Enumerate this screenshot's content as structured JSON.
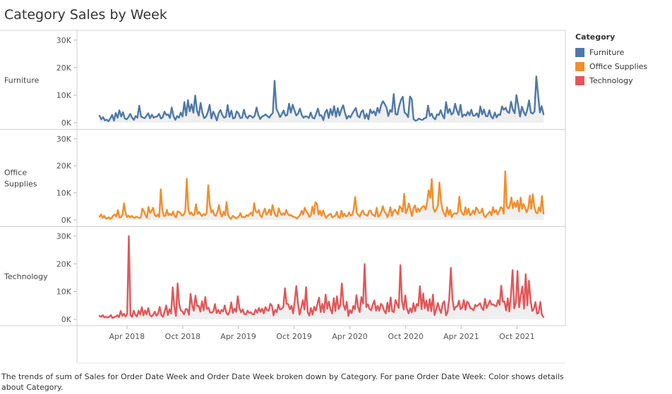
{
  "title": "Category Sales by Week",
  "caption": "The trends of sum of Sales for Order Date Week and Order Date Week broken down by Category.  For pane Order Date Week:  Color shows details about Category.",
  "legend": {
    "title": "Category",
    "items": [
      {
        "label": "Furniture",
        "color": "#4e79a7"
      },
      {
        "label": "Office Supplies",
        "color": "#f28e2b"
      },
      {
        "label": "Technology",
        "color": "#e15759"
      }
    ]
  },
  "chart_data": {
    "type": "line",
    "x_start": "2018-01-01",
    "x_end": "2021-12-27",
    "x_ticks": [
      {
        "label": "Apr 2018",
        "date": "2018-04-01"
      },
      {
        "label": "Oct 2018",
        "date": "2018-10-01"
      },
      {
        "label": "Apr 2019",
        "date": "2019-04-01"
      },
      {
        "label": "Oct 2019",
        "date": "2019-10-01"
      },
      {
        "label": "Apr 2020",
        "date": "2020-04-01"
      },
      {
        "label": "Oct 2020",
        "date": "2020-10-01"
      },
      {
        "label": "Apr 2021",
        "date": "2021-04-01"
      },
      {
        "label": "Oct 2021",
        "date": "2021-10-01"
      }
    ],
    "y_ticks": [
      {
        "label": "0K",
        "value": 0
      },
      {
        "label": "10K",
        "value": 10000
      },
      {
        "label": "20K",
        "value": 20000
      },
      {
        "label": "30K",
        "value": 30000
      }
    ],
    "ylim": [
      0,
      31000
    ],
    "grid": false,
    "panes": [
      {
        "label": "Furniture",
        "color": "#4e79a7",
        "values": [
          2500,
          1200,
          2000,
          800,
          1100,
          500,
          1500,
          2800,
          700,
          3500,
          1800,
          4500,
          2200,
          3800,
          1500,
          1200,
          2000,
          3200,
          1800,
          1000,
          2400,
          1800,
          6200,
          2200,
          1900,
          1600,
          2500,
          3400,
          1600,
          2900,
          1800,
          2100,
          2300,
          3200,
          1500,
          1900,
          4000,
          2800,
          3000,
          1700,
          5500,
          2400,
          1000,
          2400,
          1800,
          3700,
          2200,
          7500,
          2600,
          8200,
          4100,
          6700,
          3600,
          9900,
          4400,
          2500,
          7200,
          3600,
          1600,
          2200,
          3800,
          6500,
          1500,
          4000,
          2600,
          800,
          3400,
          4600,
          2800,
          1800,
          2100,
          6400,
          2100,
          4400,
          1500,
          1800,
          4100,
          3400,
          1700,
          1800,
          4700,
          2300,
          1600,
          2600,
          2300,
          1800,
          2600,
          5500,
          2800,
          1300,
          2200,
          2500,
          3000,
          2400,
          1800,
          2800,
          3500,
          15200,
          5000,
          3700,
          2000,
          3000,
          4400,
          2500,
          2800,
          6900,
          3600,
          6500,
          4500,
          2600,
          3300,
          5100,
          2800,
          1800,
          2300,
          2200,
          1700,
          3700,
          1800,
          1500,
          3200,
          5100,
          2500,
          2700,
          900,
          3700,
          4700,
          1700,
          5000,
          2700,
          6000,
          2100,
          5300,
          2600,
          4800,
          6300,
          3600,
          1400,
          2500,
          1900,
          3300,
          4300,
          5300,
          2500,
          1900,
          3900,
          4500,
          1500,
          3200,
          1200,
          4800,
          3400,
          4200,
          2600,
          5400,
          3600,
          6300,
          7800,
          6800,
          5500,
          2400,
          4600,
          3900,
          10400,
          3100,
          2900,
          6000,
          8200,
          9400,
          3700,
          3100,
          2000,
          9500,
          8600,
          1300,
          700,
          900,
          1500,
          1100,
          1000,
          1600,
          1800,
          6200,
          2400,
          3300,
          1800,
          1200,
          3000,
          2800,
          4500,
          2700,
          1500,
          7500,
          3500,
          5000,
          2900,
          3600,
          6900,
          4400,
          2800,
          6500,
          2100,
          3000,
          2500,
          3900,
          2700,
          4700,
          2500,
          2600,
          3400,
          2000,
          5900,
          3000,
          4800,
          2400,
          2300,
          4500,
          2200,
          1500,
          3700,
          1900,
          3000,
          2800,
          5900,
          4700,
          5400,
          3900,
          3500,
          7600,
          4700,
          3400,
          10000,
          6200,
          2200,
          5800,
          3900,
          2600,
          4700,
          8100,
          3600,
          3300,
          4100,
          16800,
          10200,
          3700,
          6000,
          3000
        ]
      },
      {
        "label": "Office Supplies",
        "color": "#f28e2b",
        "values": [
          1200,
          2000,
          800,
          1500,
          600,
          500,
          1000,
          400,
          800,
          1700,
          2000,
          1200,
          3600,
          900,
          1000,
          2000,
          6100,
          2500,
          1100,
          1600,
          900,
          1500,
          1000,
          700,
          1200,
          900,
          700,
          1000,
          4200,
          3200,
          1700,
          800,
          4800,
          2600,
          3400,
          4500,
          1800,
          1300,
          2000,
          1100,
          11300,
          3800,
          1400,
          1500,
          3700,
          1800,
          2300,
          1700,
          3100,
          1500,
          900,
          3200,
          2900,
          2400,
          1600,
          1900,
          3400,
          15200,
          3900,
          2100,
          2800,
          1700,
          2100,
          5800,
          2200,
          3000,
          2000,
          1400,
          2200,
          1700,
          2700,
          12800,
          5800,
          2800,
          3600,
          1800,
          1500,
          3000,
          5500,
          2300,
          1200,
          3000,
          1800,
          6600,
          1800,
          800,
          400,
          1500,
          1100,
          600,
          800,
          1300,
          2500,
          1000,
          1200,
          900,
          1800,
          1400,
          2200,
          2700,
          1600,
          6200,
          3200,
          2700,
          3700,
          1600,
          1000,
          2900,
          4200,
          1900,
          2700,
          3900,
          1800,
          5500,
          3200,
          1600,
          1300,
          4300,
          2700,
          1800,
          2500,
          1900,
          3700,
          2200,
          1600,
          1900,
          1300,
          1100,
          900,
          500,
          1200,
          1800,
          3400,
          2000,
          4500,
          3300,
          2500,
          1100,
          1700,
          4900,
          2200,
          6500,
          6000,
          2000,
          3400,
          1500,
          3500,
          2000,
          700,
          1500,
          2000,
          2300,
          900,
          1300,
          1500,
          3000,
          1000,
          800,
          3400,
          1200,
          2300,
          1300,
          1500,
          2800,
          1600,
          1900,
          3900,
          8500,
          2500,
          1900,
          1200,
          2700,
          3500,
          2100,
          1800,
          1500,
          3200,
          3500,
          2000,
          1800,
          1300,
          4500,
          1200,
          1800,
          3000,
          5100,
          3100,
          2500,
          1000,
          2400,
          4700,
          1400,
          3200,
          3800,
          2800,
          2000,
          5100,
          4400,
          3000,
          9700,
          2500,
          3600,
          6100,
          3900,
          1400,
          4100,
          5400,
          2900,
          4300,
          3100,
          4200,
          4900,
          5100,
          3800,
          6800,
          11000,
          8200,
          15100,
          4400,
          3000,
          3900,
          5300,
          13800,
          7000,
          3800,
          2400,
          1300,
          4700,
          1900,
          3700,
          1000,
          2000,
          2500,
          2200,
          2800,
          8600,
          3600,
          2300,
          1800,
          4700,
          2200,
          4100,
          1700,
          2300,
          3500,
          2100,
          4600,
          3700,
          2500,
          2800,
          4200,
          1700,
          1000,
          1800,
          2500,
          3100,
          1700,
          4700,
          2800,
          3600,
          2000,
          3100,
          4700,
          4300,
          2300,
          18000,
          5000,
          4200,
          5200,
          8300,
          4300,
          6500,
          4800,
          7200,
          3100,
          8200,
          4100,
          5900,
          4400,
          2800,
          4400,
          9000,
          4100,
          9400,
          4800,
          2800,
          2400,
          4700,
          3100,
          8800,
          2300
        ]
      },
      {
        "label": "Technology",
        "color": "#e15759",
        "values": [
          1200,
          900,
          1500,
          700,
          1000,
          600,
          900,
          1500,
          500,
          800,
          1000,
          1500,
          800,
          3000,
          1200,
          2000,
          1000,
          1900,
          30000,
          1500,
          900,
          3100,
          1600,
          1000,
          3100,
          1700,
          4400,
          1400,
          3200,
          1800,
          4100,
          1500,
          1000,
          1600,
          2800,
          1300,
          2000,
          4500,
          1500,
          900,
          2800,
          5000,
          1500,
          3600,
          2100,
          11500,
          4500,
          1200,
          12900,
          5400,
          3200,
          2800,
          1800,
          3700,
          3600,
          1600,
          9200,
          5000,
          3100,
          8500,
          4800,
          4900,
          2800,
          6500,
          3200,
          8000,
          3700,
          4200,
          2400,
          2400,
          2900,
          5500,
          2200,
          3400,
          2100,
          3400,
          2800,
          5000,
          2300,
          1600,
          2800,
          6100,
          2300,
          3900,
          2700,
          8300,
          4200,
          2500,
          3600,
          1900,
          1700,
          3100,
          2300,
          2600,
          1800,
          1800,
          3500,
          2300,
          4100,
          2700,
          3800,
          2100,
          4400,
          3300,
          3100,
          5600,
          4900,
          1400,
          3400,
          2600,
          5300,
          3500,
          3800,
          4400,
          11200,
          5600,
          5500,
          3600,
          4900,
          2100,
          6500,
          12000,
          5800,
          1700,
          4200,
          6900,
          3500,
          11600,
          2600,
          1300,
          4100,
          1700,
          4500,
          3100,
          5600,
          7800,
          2600,
          5600,
          2500,
          8900,
          3800,
          6400,
          3500,
          2100,
          7600,
          3000,
          8300,
          3700,
          5100,
          12900,
          5300,
          3400,
          6300,
          1200,
          3400,
          2200,
          4800,
          3600,
          8700,
          4400,
          2600,
          8000,
          5700,
          19900,
          4400,
          5400,
          3700,
          3200,
          5300,
          6800,
          3100,
          4900,
          3100,
          5600,
          4900,
          3100,
          2100,
          6000,
          2800,
          7900,
          2900,
          2600,
          7000,
          5400,
          4100,
          19500,
          6600,
          3500,
          8600,
          3800,
          2100,
          4000,
          2500,
          5800,
          2900,
          5500,
          4900,
          12000,
          3600,
          9300,
          4000,
          6700,
          3100,
          7300,
          2900,
          8900,
          1500,
          3500,
          5900,
          3700,
          2300,
          5700,
          6500,
          1400,
          2700,
          7600,
          18500,
          7300,
          3400,
          4500,
          4700,
          6700,
          3600,
          4300,
          7000,
          3400,
          6400,
          5700,
          4000,
          3800,
          3200,
          5200,
          4700,
          5200,
          5800,
          4100,
          3300,
          7400,
          4100,
          5300,
          6800,
          5300,
          5400,
          4900,
          4700,
          6900,
          5200,
          12100,
          6300,
          6400,
          3200,
          7600,
          2800,
          8900,
          17700,
          3900,
          6000,
          17400,
          4300,
          8700,
          11800,
          3800,
          16200,
          5000,
          13900,
          7000,
          3000,
          3700,
          6200,
          2000,
          2500,
          6200,
          1600,
          800
        ]
      }
    ]
  }
}
